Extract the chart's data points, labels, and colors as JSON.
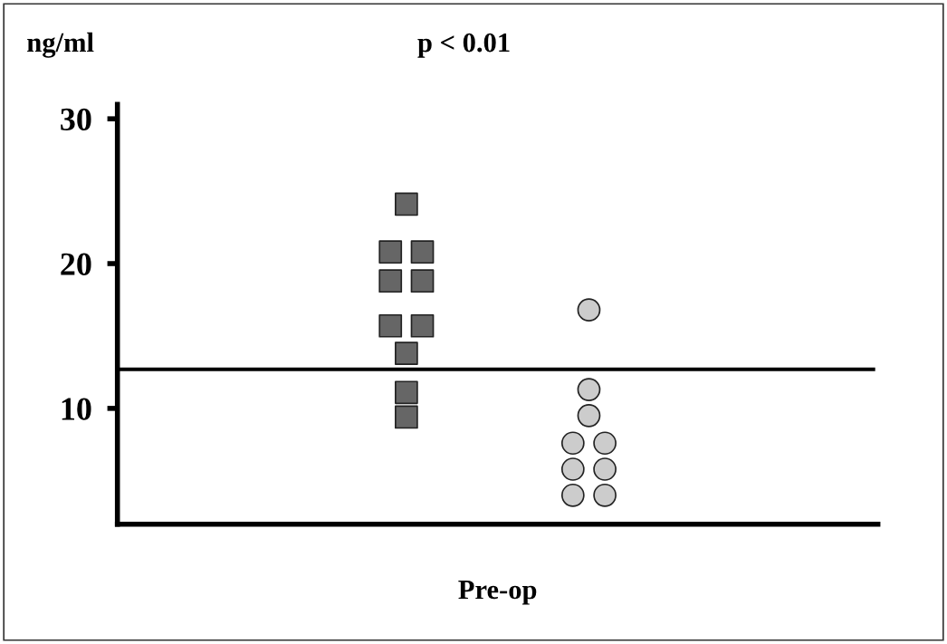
{
  "chart_data": {
    "type": "scatter",
    "ylabel": "ng/ml",
    "annotations": [
      "p < 0.01"
    ],
    "categories": [
      "Pre-op"
    ],
    "ylim": [
      2,
      31
    ],
    "yticks": [
      10,
      20,
      30
    ],
    "grid": false,
    "legend": false,
    "series": [
      {
        "color": "#666666",
        "marker": "square",
        "x": [
          "Pre-op",
          "Pre-op",
          "Pre-op",
          "Pre-op",
          "Pre-op",
          "Pre-op",
          "Pre-op",
          "Pre-op",
          "Pre-op",
          "Pre-op"
        ],
        "values": [
          24.1,
          20.8,
          20.8,
          18.8,
          18.8,
          15.7,
          15.7,
          13.8,
          11.1,
          9.4
        ]
      },
      {
        "color": "#cccccc",
        "marker": "circle",
        "x": [
          "Pre-op",
          "Pre-op",
          "Pre-op",
          "Pre-op",
          "Pre-op",
          "Pre-op",
          "Pre-op",
          "Pre-op",
          "Pre-op"
        ],
        "values": [
          16.8,
          11.3,
          9.5,
          7.6,
          7.6,
          5.8,
          5.8,
          4.0,
          4.0
        ]
      }
    ],
    "ref_lines": [
      {
        "axis": "y",
        "value": 12.7,
        "color": "#000000",
        "line_style": "solid"
      }
    ]
  }
}
